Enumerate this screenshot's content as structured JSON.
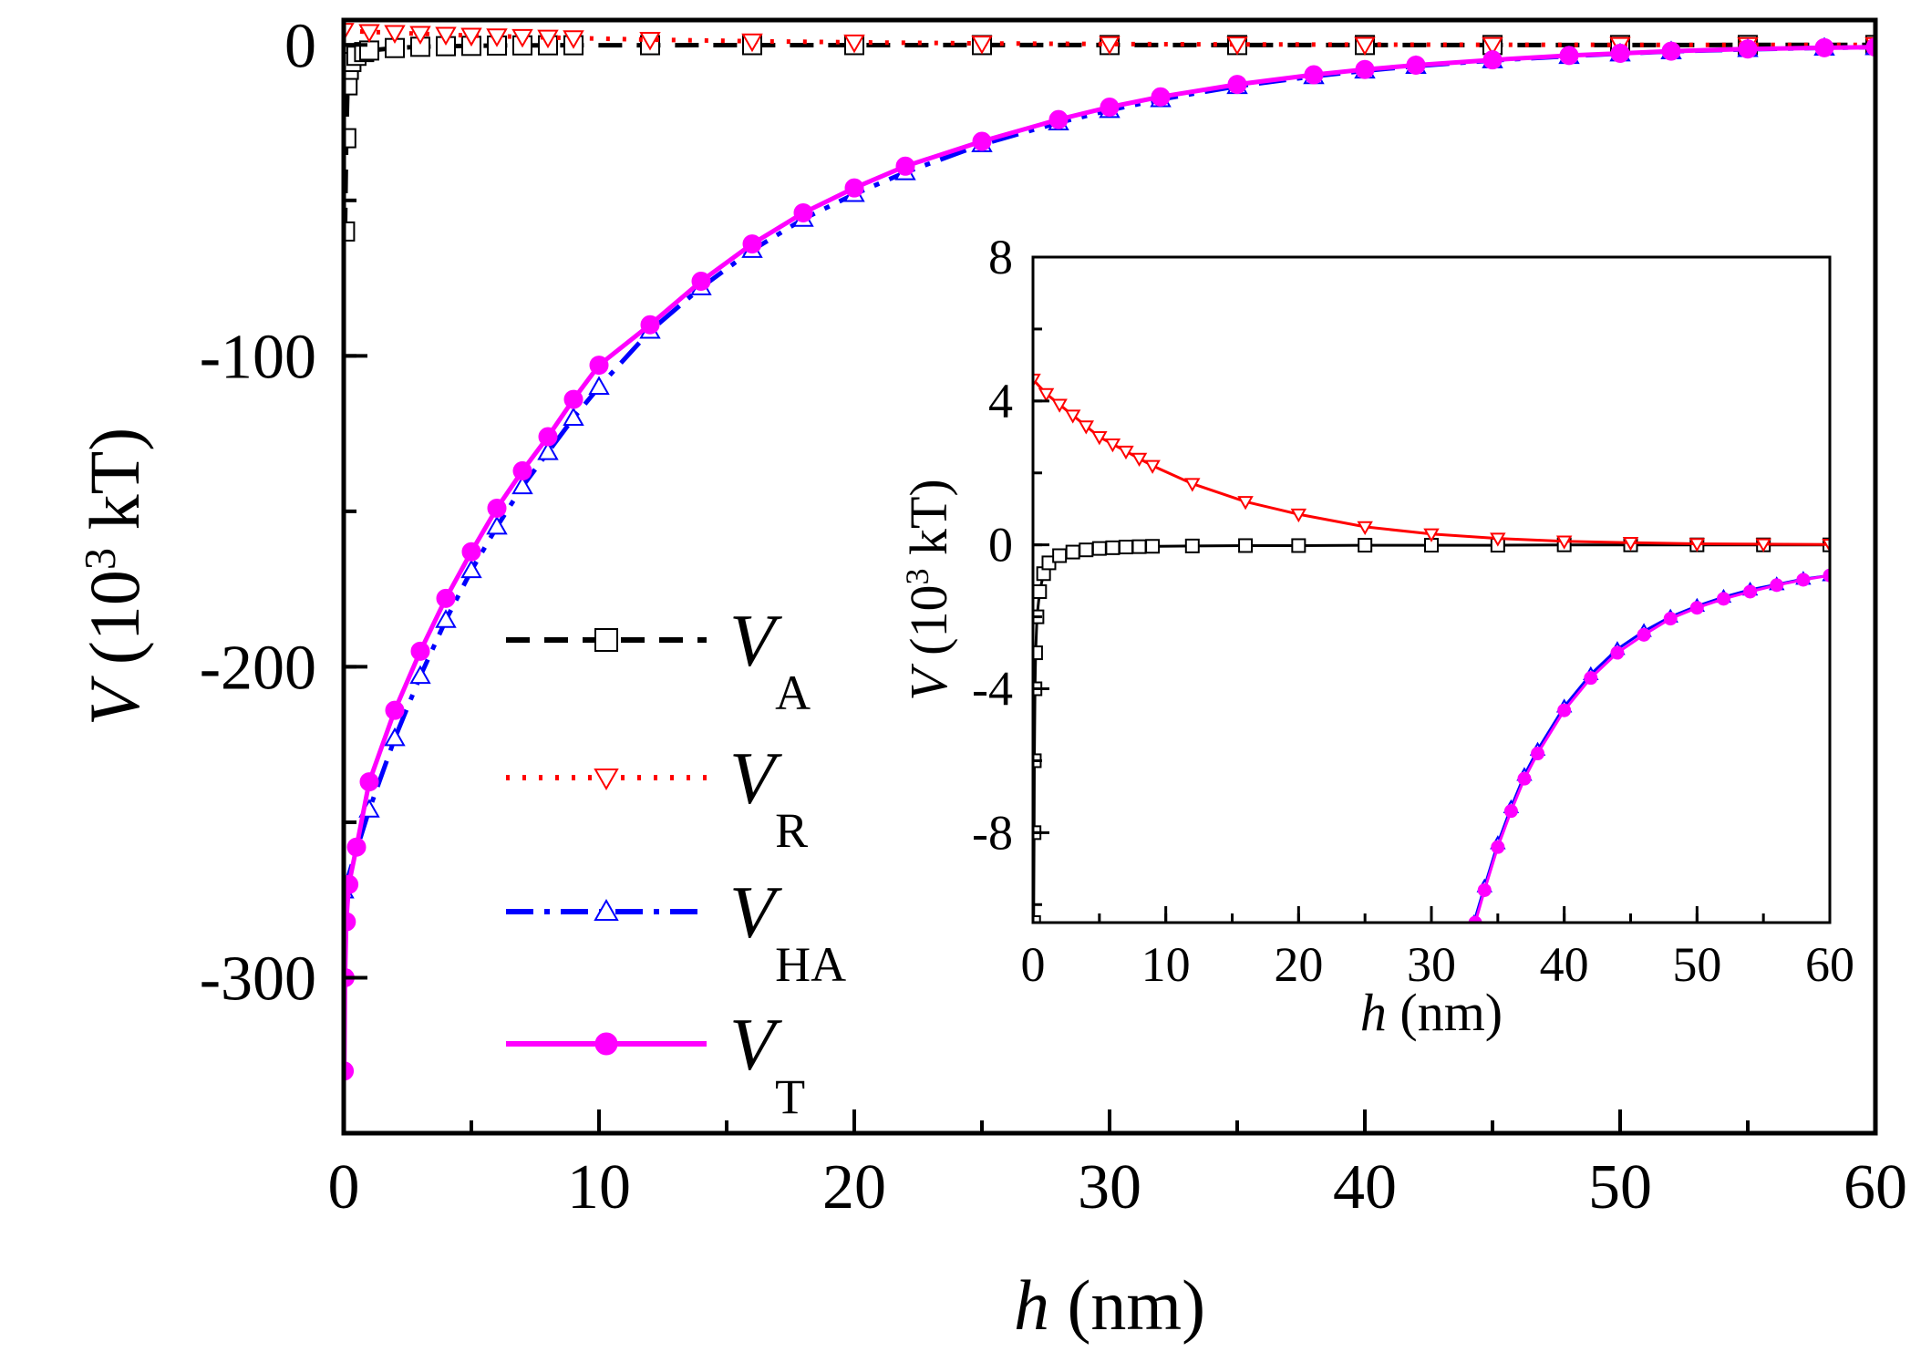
{
  "chart_data": [
    {
      "id": "main",
      "type": "line",
      "xlabel": {
        "italic": "h",
        "rest": " (nm)"
      },
      "ylabel": {
        "italic": "V",
        "pre": " (10",
        "sup": "3",
        "post": " kT)"
      },
      "xlim": [
        0,
        60
      ],
      "ylim": [
        -350,
        8
      ],
      "xticks": [
        0,
        10,
        20,
        30,
        40,
        50,
        60
      ],
      "yticks": [
        0,
        -100,
        -200,
        -300
      ],
      "x_minor_step": 5,
      "y_minor_step": 50,
      "grid": false,
      "legend_position": "center-left",
      "legend": [
        {
          "series": "VA",
          "main": "V",
          "sub": "A"
        },
        {
          "series": "VR",
          "main": "V",
          "sub": "R"
        },
        {
          "series": "VHA",
          "main": "V",
          "sub": "HA"
        },
        {
          "series": "VT",
          "main": "V",
          "sub": "T"
        }
      ],
      "series": [
        {
          "name": "VA",
          "color": "#000000",
          "dash": "dash",
          "marker": "square-open",
          "x": [
            0.05,
            0.1,
            0.15,
            0.2,
            0.3,
            0.5,
            0.8,
            1,
            2,
            3,
            4,
            5,
            6,
            7,
            8,
            9,
            12,
            16,
            20,
            25,
            30,
            35,
            40,
            45,
            50,
            55,
            60
          ],
          "y": [
            -60,
            -30,
            -13,
            -8,
            -5.5,
            -3.5,
            -2.3,
            -1.8,
            -1.0,
            -0.6,
            -0.4,
            -0.3,
            -0.2,
            -0.15,
            -0.12,
            -0.1,
            -0.08,
            -0.06,
            -0.05,
            -0.04,
            -0.03,
            -0.03,
            -0.02,
            -0.02,
            -0.02,
            -0.01,
            -0.01
          ]
        },
        {
          "name": "VR",
          "color": "#ff0000",
          "dash": "dot",
          "marker": "triangle-down-open",
          "x": [
            0,
            1,
            2,
            3,
            4,
            5,
            6,
            7,
            8,
            9,
            12,
            16,
            20,
            25,
            30,
            35,
            40,
            45,
            50,
            55,
            60
          ],
          "y": [
            4.6,
            4.2,
            3.9,
            3.6,
            3.3,
            3.0,
            2.8,
            2.6,
            2.4,
            2.2,
            1.7,
            1.2,
            0.85,
            0.5,
            0.3,
            0.18,
            0.1,
            0.06,
            0.03,
            0.02,
            0.01
          ]
        },
        {
          "name": "VHA",
          "color": "#0000ff",
          "dash": "dashdot",
          "marker": "triangle-up-open",
          "x": [
            0,
            1,
            2,
            3,
            4,
            5,
            6,
            7,
            8,
            9,
            10,
            12,
            14,
            16,
            18,
            20,
            22,
            25,
            28,
            30,
            32,
            35,
            38,
            40,
            42,
            45,
            48,
            50,
            52,
            55,
            58,
            60
          ],
          "y": [
            -272,
            -246,
            -223,
            -203,
            -185,
            -169,
            -155,
            -142,
            -131,
            -120,
            -110,
            -92,
            -78,
            -66,
            -56,
            -48,
            -41,
            -32,
            -25,
            -21,
            -17.5,
            -13.3,
            -10.1,
            -8.3,
            -6.8,
            -5.0,
            -3.6,
            -2.8,
            -2.1,
            -1.4,
            -0.95,
            -0.75
          ]
        },
        {
          "name": "VT",
          "color": "#ff00ff",
          "dash": "solid",
          "marker": "circle-filled",
          "x": [
            0.02,
            0.05,
            0.1,
            0.2,
            0.5,
            1,
            2,
            3,
            4,
            5,
            6,
            7,
            8,
            9,
            10,
            12,
            14,
            16,
            18,
            20,
            22,
            25,
            28,
            30,
            32,
            35,
            38,
            40,
            42,
            45,
            48,
            50,
            52,
            55,
            58,
            60
          ],
          "y": [
            -330,
            -300,
            -282,
            -270,
            -258,
            -237,
            -214,
            -195,
            -178,
            -163,
            -149,
            -137,
            -126,
            -114,
            -103,
            -90,
            -76,
            -64,
            -54,
            -46,
            -39,
            -31,
            -24,
            -20,
            -16.7,
            -12.7,
            -9.6,
            -7.9,
            -6.5,
            -4.8,
            -3.4,
            -2.7,
            -2.0,
            -1.3,
            -0.9,
            -0.7
          ]
        }
      ]
    },
    {
      "id": "inset",
      "type": "line",
      "xlabel": {
        "italic": "h",
        "rest": " (nm)"
      },
      "ylabel": {
        "italic": "V",
        "pre": " (10",
        "sup": "3",
        "post": " kT)"
      },
      "xlim": [
        0,
        60
      ],
      "ylim": [
        -10.5,
        8
      ],
      "xticks": [
        0,
        10,
        20,
        30,
        40,
        50,
        60
      ],
      "yticks": [
        8,
        4,
        0,
        -4,
        -8
      ],
      "x_minor_step": 5,
      "y_minor_step": 2,
      "grid": false,
      "series": [
        {
          "name": "VA",
          "color": "#000000",
          "marker": "square-open",
          "x": [
            0.05,
            0.08,
            0.1,
            0.15,
            0.2,
            0.3,
            0.5,
            0.8,
            1.2,
            2,
            3,
            4,
            5,
            6,
            7,
            8,
            9,
            12,
            16,
            20,
            25,
            30,
            35,
            40,
            45,
            50,
            55,
            60
          ],
          "y": [
            -10.5,
            -8,
            -6,
            -4,
            -3,
            -2,
            -1.3,
            -0.8,
            -0.5,
            -0.3,
            -0.2,
            -0.14,
            -0.1,
            -0.08,
            -0.06,
            -0.05,
            -0.04,
            -0.03,
            -0.02,
            -0.02,
            -0.01,
            -0.01,
            -0.01,
            0,
            0,
            0,
            0,
            0
          ]
        },
        {
          "name": "VR",
          "color": "#ff0000",
          "marker": "triangle-down-open",
          "x": [
            0,
            1,
            2,
            3,
            4,
            5,
            6,
            7,
            8,
            9,
            12,
            16,
            20,
            25,
            30,
            35,
            40,
            45,
            50,
            55,
            60
          ],
          "y": [
            4.6,
            4.2,
            3.9,
            3.6,
            3.3,
            3.0,
            2.8,
            2.6,
            2.4,
            2.2,
            1.7,
            1.2,
            0.85,
            0.5,
            0.3,
            0.18,
            0.1,
            0.06,
            0.03,
            0.02,
            0.01
          ]
        },
        {
          "name": "VHA",
          "color": "#0000ff",
          "marker": "triangle-up-open",
          "x": [
            33.2,
            34,
            35,
            36,
            37,
            38,
            40,
            42,
            44,
            46,
            48,
            50,
            52,
            54,
            56,
            58,
            60
          ],
          "y": [
            -10.5,
            -9.5,
            -8.3,
            -7.3,
            -6.4,
            -5.7,
            -4.5,
            -3.6,
            -2.9,
            -2.4,
            -2.0,
            -1.7,
            -1.45,
            -1.25,
            -1.1,
            -0.95,
            -0.85
          ]
        },
        {
          "name": "VT",
          "color": "#ff00ff",
          "marker": "circle-filled",
          "x": [
            33.3,
            34,
            35,
            36,
            37,
            38,
            40,
            42,
            44,
            46,
            48,
            50,
            52,
            54,
            56,
            58,
            60
          ],
          "y": [
            -10.5,
            -9.6,
            -8.4,
            -7.4,
            -6.5,
            -5.8,
            -4.6,
            -3.7,
            -3.0,
            -2.5,
            -2.05,
            -1.75,
            -1.5,
            -1.3,
            -1.12,
            -0.97,
            -0.85
          ]
        }
      ]
    }
  ]
}
